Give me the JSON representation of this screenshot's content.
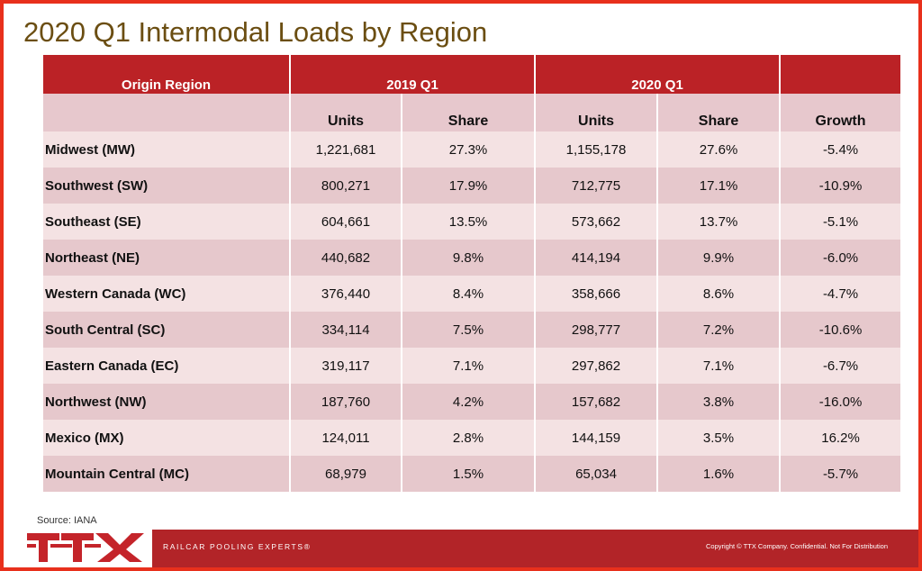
{
  "title": "2020 Q1 Intermodal Loads by Region",
  "table": {
    "header_top": {
      "origin": "Origin Region",
      "period_2019": "2019 Q1",
      "period_2020": "2020 Q1"
    },
    "header_sub": [
      "Units",
      "Share",
      "Units",
      "Share",
      "Growth"
    ],
    "rows": [
      {
        "region": "Midwest (MW)",
        "units_2019": "1,221,681",
        "share_2019": "27.3%",
        "units_2020": "1,155,178",
        "share_2020": "27.6%",
        "growth": "-5.4%"
      },
      {
        "region": "Southwest (SW)",
        "units_2019": "800,271",
        "share_2019": "17.9%",
        "units_2020": "712,775",
        "share_2020": "17.1%",
        "growth": "-10.9%"
      },
      {
        "region": "Southeast (SE)",
        "units_2019": "604,661",
        "share_2019": "13.5%",
        "units_2020": "573,662",
        "share_2020": "13.7%",
        "growth": "-5.1%"
      },
      {
        "region": "Northeast (NE)",
        "units_2019": "440,682",
        "share_2019": "9.8%",
        "units_2020": "414,194",
        "share_2020": "9.9%",
        "growth": "-6.0%"
      },
      {
        "region": "Western Canada (WC)",
        "units_2019": "376,440",
        "share_2019": "8.4%",
        "units_2020": "358,666",
        "share_2020": "8.6%",
        "growth": "-4.7%"
      },
      {
        "region": "South Central (SC)",
        "units_2019": "334,114",
        "share_2019": "7.5%",
        "units_2020": "298,777",
        "share_2020": "7.2%",
        "growth": "-10.6%"
      },
      {
        "region": "Eastern Canada (EC)",
        "units_2019": "319,117",
        "share_2019": "7.1%",
        "units_2020": "297,862",
        "share_2020": "7.1%",
        "growth": "-6.7%"
      },
      {
        "region": "Northwest (NW)",
        "units_2019": "187,760",
        "share_2019": "4.2%",
        "units_2020": "157,682",
        "share_2020": "3.8%",
        "growth": "-16.0%"
      },
      {
        "region": "Mexico (MX)",
        "units_2019": "124,011",
        "share_2019": "2.8%",
        "units_2020": "144,159",
        "share_2020": "3.5%",
        "growth": "16.2%"
      },
      {
        "region": "Mountain Central (MC)",
        "units_2019": "68,979",
        "share_2019": "1.5%",
        "units_2020": "65,034",
        "share_2020": "1.6%",
        "growth": "-5.7%"
      }
    ]
  },
  "source": "Source: IANA",
  "footer": {
    "logo_text": "TTX",
    "tagline": "RAILCAR POOLING EXPERTS®",
    "copyright": "Copyright © TTX Company. Confidential. Not For Distribution"
  },
  "colors": {
    "header_red": "#bb2226",
    "footer_red": "#b22428",
    "frame_border": "#e8301c",
    "title_brown": "#6b4e12",
    "row_light": "#f4e2e3",
    "row_dark": "#e6c8cc"
  }
}
